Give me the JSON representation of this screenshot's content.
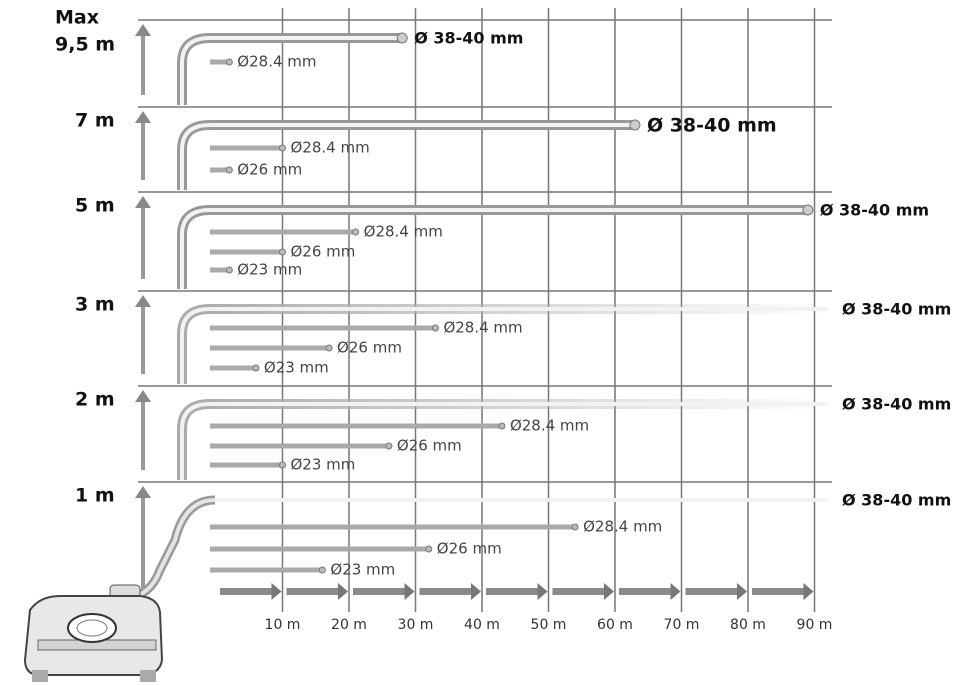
{
  "xaxis": {
    "unit_ticks": [
      {
        "value": 10,
        "label": "10 m"
      },
      {
        "value": 20,
        "label": "20 m"
      },
      {
        "value": 30,
        "label": "30 m"
      },
      {
        "value": 40,
        "label": "40 m"
      },
      {
        "value": 50,
        "label": "50 m"
      },
      {
        "value": 60,
        "label": "60 m"
      },
      {
        "value": 70,
        "label": "70 m"
      },
      {
        "value": 80,
        "label": "80 m"
      },
      {
        "value": 90,
        "label": "90 m"
      }
    ]
  },
  "rows": [
    {
      "prefix": "Max",
      "label": "9,5 m",
      "pipes": [
        {
          "label": "Ø 38-40 mm",
          "length": 28
        },
        {
          "label": "Ø28.4 mm",
          "length": 2
        }
      ]
    },
    {
      "label": "7 m",
      "pipes": [
        {
          "label": "Ø 38-40 mm",
          "length": 63
        },
        {
          "label": "Ø28.4 mm",
          "length": 10
        },
        {
          "label": "Ø26 mm",
          "length": 2
        }
      ]
    },
    {
      "label": "5 m",
      "pipes": [
        {
          "label": "Ø 38-40 mm",
          "length": 89
        },
        {
          "label": "Ø28.4 mm",
          "length": 21
        },
        {
          "label": "Ø26 mm",
          "length": 10
        },
        {
          "label": "Ø23 mm",
          "length": 2
        }
      ]
    },
    {
      "label": "3 m",
      "pipes": [
        {
          "label": "Ø 38-40 mm",
          "length": 92
        },
        {
          "label": "Ø28.4 mm",
          "length": 33
        },
        {
          "label": "Ø26 mm",
          "length": 17
        },
        {
          "label": "Ø23 mm",
          "length": 6
        }
      ]
    },
    {
      "label": "2 m",
      "pipes": [
        {
          "label": "Ø 38-40 mm",
          "length": 92
        },
        {
          "label": "Ø28.4 mm",
          "length": 43
        },
        {
          "label": "Ø26 mm",
          "length": 26
        },
        {
          "label": "Ø23 mm",
          "length": 10
        }
      ]
    },
    {
      "label": "1 m",
      "pipes": [
        {
          "label": "Ø 38-40 mm",
          "length": 92
        },
        {
          "label": "Ø28.4 mm",
          "length": 54
        },
        {
          "label": "Ø26 mm",
          "length": 32
        },
        {
          "label": "Ø23 mm",
          "length": 16
        }
      ]
    }
  ]
}
